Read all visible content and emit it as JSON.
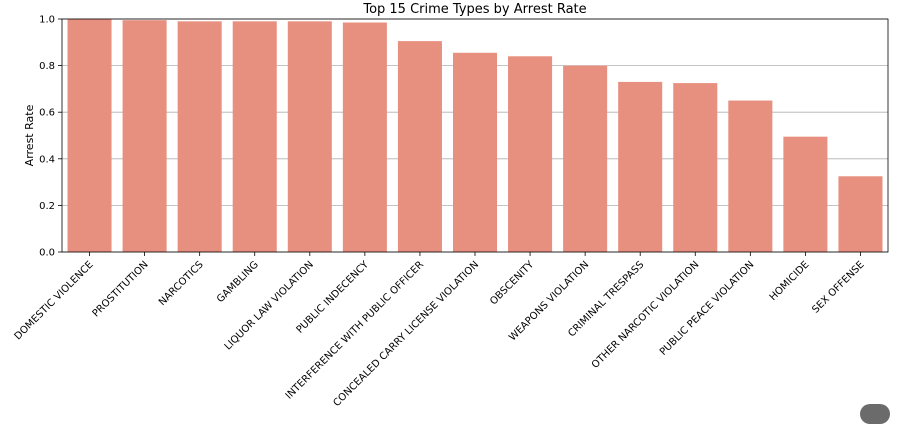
{
  "chart_data": {
    "type": "bar",
    "title": "Top 15 Crime Types by Arrest Rate",
    "xlabel": "",
    "ylabel": "Arrest Rate",
    "ylim": [
      0,
      1.0
    ],
    "yticks": [
      "0.0",
      "0.2",
      "0.4",
      "0.6",
      "0.8",
      "1.0"
    ],
    "grid": "horizontal",
    "bar_color": "#e8907f",
    "categories": [
      "DOMESTIC VIOLENCE",
      "PROSTITUTION",
      "NARCOTICS",
      "GAMBLING",
      "LIQUOR LAW VIOLATION",
      "PUBLIC INDECENCY",
      "INTERFERENCE WITH PUBLIC OFFICER",
      "CONCEALED CARRY LICENSE VIOLATION",
      "OBSCENITY",
      "WEAPONS VIOLATION",
      "CRIMINAL TRESPASS",
      "OTHER NARCOTIC VIOLATION",
      "PUBLIC PEACE VIOLATION",
      "HOMICIDE",
      "SEX OFFENSE"
    ],
    "values": [
      1.0,
      0.995,
      0.99,
      0.99,
      0.99,
      0.985,
      0.905,
      0.855,
      0.84,
      0.8,
      0.73,
      0.725,
      0.65,
      0.495,
      0.325
    ]
  }
}
